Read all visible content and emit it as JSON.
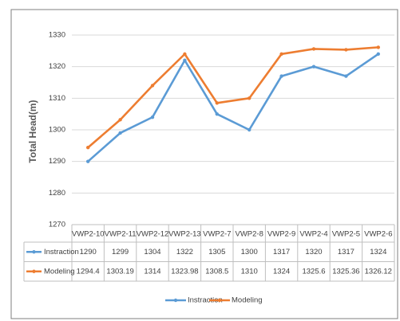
{
  "chart_data": {
    "type": "line",
    "y_axis_label": "Total Head(m)",
    "categories": [
      "VWP2-10",
      "VWP2-11",
      "VWP2-12",
      "VWP2-13",
      "VWP2-7",
      "VWP2-8",
      "VWP2-9",
      "VWP2-4",
      "VWP2-5",
      "VWP2-6"
    ],
    "series": [
      {
        "name": "Instraction",
        "color": "#5b9bd5",
        "values": [
          1290,
          1299,
          1304,
          1322,
          1305,
          1300,
          1317,
          1320,
          1317,
          1324
        ]
      },
      {
        "name": "Modeling",
        "color": "#ed7d31",
        "values": [
          1294.4,
          1303.19,
          1314,
          1323.98,
          1308.5,
          1310,
          1324,
          1325.6,
          1325.36,
          1326.12
        ]
      }
    ],
    "ylim": [
      1270,
      1330
    ],
    "yticks": [
      1270,
      1280,
      1290,
      1300,
      1310,
      1320,
      1330
    ],
    "grid": true,
    "data_table": true,
    "legend": "bottom"
  }
}
